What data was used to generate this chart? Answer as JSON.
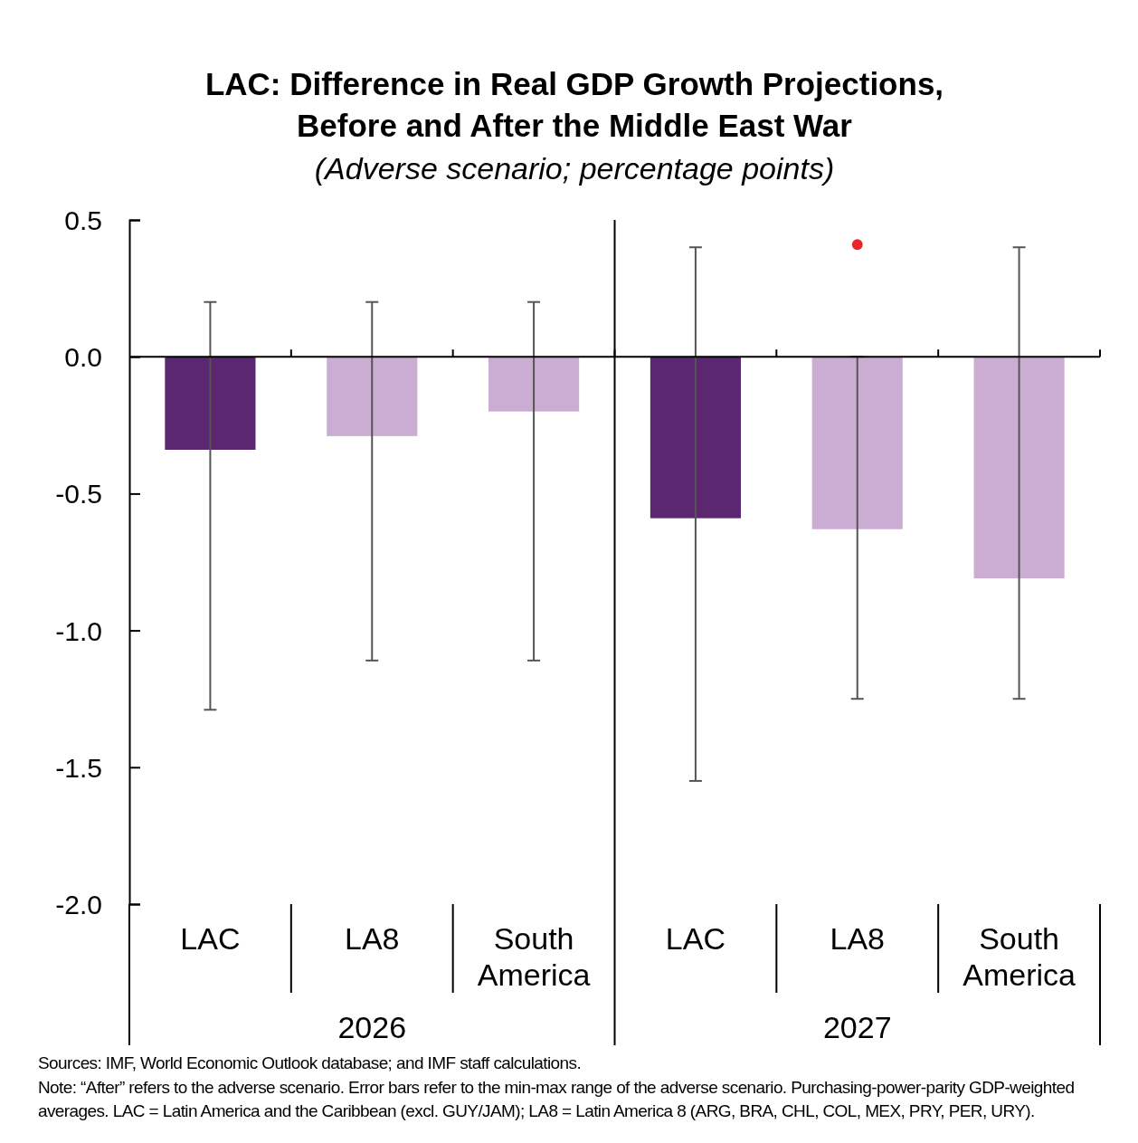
{
  "chart_data": {
    "type": "bar",
    "title": "LAC: Difference in Real GDP Growth Projections,\nBefore and After the Middle East War",
    "subtitle": "(Adverse scenario; percentage points)",
    "categories": [
      "LAC",
      "LA8",
      "South America",
      "LAC",
      "LA8",
      "South America"
    ],
    "series": [
      {
        "colors": [
          "#5b2770",
          "#cbadd3",
          "#cbadd3",
          "#5b2770",
          "#cbadd3",
          "#cbadd3"
        ],
        "values": [
          -0.34,
          -0.29,
          -0.2,
          -0.59,
          -0.63,
          -0.81
        ],
        "errors": [
          [
            -1.29,
            0.2
          ],
          [
            -1.11,
            0.2
          ],
          [
            -1.11,
            0.2
          ],
          [
            -1.55,
            0.4
          ],
          [
            -1.25,
            0
          ],
          [
            -1.25,
            0.4
          ]
        ]
      },
      {
        "type": "scatter",
        "color": "#e8262a",
        "values": [
          null,
          null,
          null,
          null,
          0.41,
          null
        ]
      }
    ],
    "ylim": [
      -2.0,
      0.5
    ],
    "yticks": [
      0.5,
      {
        "value": 0,
        "label": "0.0"
      },
      -0.5,
      {
        "value": -1,
        "label": "-1.0"
      },
      -1.5,
      {
        "value": -2,
        "label": "-2.0"
      }
    ],
    "marker": "circle",
    "annotations": [
      "2026",
      "2027",
      "Sources: IMF, World Economic Outlook database; and IMF staff calculations.",
      "Note: “After” refers to the adverse scenario. Error bars refer to the min-max range of the adverse scenario. Purchasing-power-parity GDP-weighted averages. LAC = Latin America and the Caribbean (excl. GUY/JAM); LA8 = Latin America 8 (ARG, BRA, CHL, COL, MEX, PRY, PER, URY)."
    ]
  }
}
